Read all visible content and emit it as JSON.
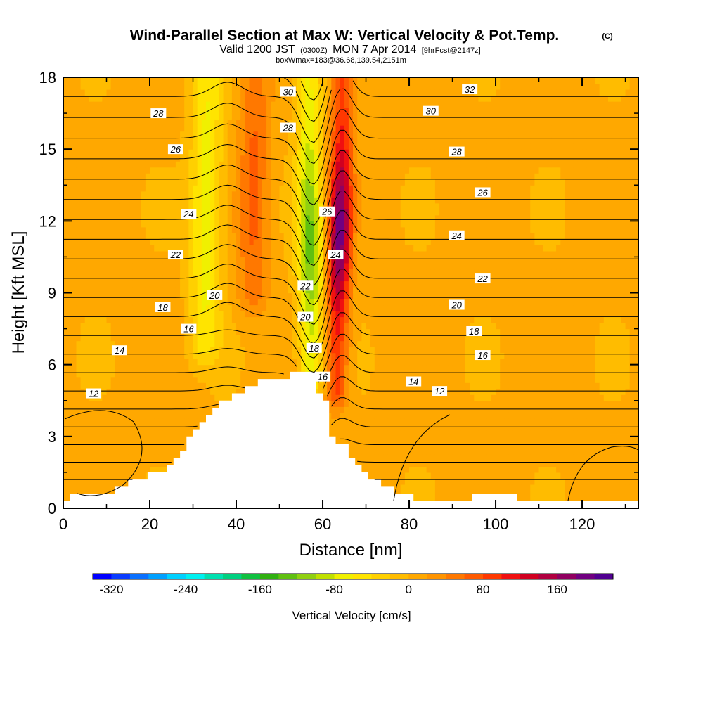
{
  "chart_data": {
    "type": "heatmap",
    "title": "Wind-Parallel Section at Max W: Vertical Velocity & Pot.Temp.",
    "title_mark": "(C)",
    "subtitle_parts": [
      "Valid 1200 JST",
      "(0300Z)",
      "MON 7 Apr 2014",
      "[9hrFcst@2147z]"
    ],
    "subtitle2": "boxWmax=183@36.68,139.54,2151m",
    "xlabel": "Distance [nm]",
    "ylabel": "Height [Kft MSL]",
    "xlim": [
      0,
      133
    ],
    "ylim": [
      0,
      18
    ],
    "x_ticks": [
      0,
      20,
      40,
      60,
      80,
      100,
      120
    ],
    "x_tick_labels": [
      "0",
      "20",
      "40",
      "60",
      "80",
      "100",
      "120"
    ],
    "y_ticks": [
      0,
      3,
      6,
      9,
      12,
      15,
      18
    ],
    "y_tick_labels": [
      "0",
      "3",
      "6",
      "9",
      "12",
      "15",
      "18"
    ],
    "colorbar": {
      "label": "Vertical Velocity [cm/s]",
      "min": -340,
      "max": 220,
      "step": 20,
      "tick_values": [
        -320,
        -240,
        -160,
        -80,
        0,
        80,
        160
      ],
      "tick_labels": [
        "-320",
        "-240",
        "-160",
        "-80",
        "0",
        "80",
        "160"
      ],
      "colors": [
        "#0000ff",
        "#0a3cff",
        "#0a70ff",
        "#00a0ff",
        "#00d0ff",
        "#00f0f0",
        "#00e0b0",
        "#00d080",
        "#10c040",
        "#30b010",
        "#60c010",
        "#90d010",
        "#c0e000",
        "#f0f000",
        "#ffe400",
        "#ffd000",
        "#ffbc00",
        "#ffa800",
        "#ff9400",
        "#ff7800",
        "#ff5a00",
        "#ff3800",
        "#f01010",
        "#d00020",
        "#b00040",
        "#900060",
        "#700080",
        "#500090"
      ]
    },
    "vertical_velocity_cm_s": {
      "description": "value grid x 0..132 nm step 4, z 0..18 kft step 1",
      "features": [
        {
          "name": "downdraft",
          "x_nm": 33,
          "z_kft": [
            7,
            18
          ],
          "min_value": -80
        },
        {
          "name": "updraft",
          "x_nm": 44,
          "z_kft": [
            9,
            18
          ],
          "max_value": 60
        },
        {
          "name": "downdraft",
          "x_nm": 57,
          "z_kft": [
            5.5,
            18
          ],
          "min_value": -130
        },
        {
          "name": "updraft",
          "x_nm": 64,
          "z_kft": [
            5,
            18
          ],
          "max_value": 183
        }
      ]
    },
    "terrain": {
      "x_nm": [
        0,
        3,
        10,
        13,
        16,
        22,
        25,
        28,
        32,
        35,
        39,
        42,
        45,
        48,
        51,
        55,
        57,
        58,
        59,
        61,
        62,
        65,
        68,
        71,
        74,
        79,
        82,
        90,
        100,
        110,
        120,
        133
      ],
      "height_kft": [
        0.3,
        0.6,
        0.6,
        0.9,
        1.2,
        1.5,
        1.8,
        2.6,
        3.7,
        4.2,
        4.7,
        5.0,
        5.2,
        5.4,
        5.5,
        5.7,
        5.7,
        5.6,
        5.0,
        4.3,
        3.0,
        2.7,
        1.8,
        1.3,
        1.0,
        0.6,
        0.3,
        0.3,
        0.6,
        0.3,
        0.3,
        0.3
      ]
    },
    "potential_temperature_contours": {
      "labels": [
        {
          "text": "12",
          "x_nm": 7,
          "z_kft": 4.8
        },
        {
          "text": "14",
          "x_nm": 13,
          "z_kft": 6.6
        },
        {
          "text": "16",
          "x_nm": 29,
          "z_kft": 7.5
        },
        {
          "text": "18",
          "x_nm": 23,
          "z_kft": 8.4
        },
        {
          "text": "20",
          "x_nm": 35,
          "z_kft": 8.9
        },
        {
          "text": "22",
          "x_nm": 26,
          "z_kft": 10.6
        },
        {
          "text": "24",
          "x_nm": 29,
          "z_kft": 12.3
        },
        {
          "text": "26",
          "x_nm": 26,
          "z_kft": 15.0
        },
        {
          "text": "28",
          "x_nm": 22,
          "z_kft": 16.5
        },
        {
          "text": "30",
          "x_nm": 52,
          "z_kft": 17.4
        },
        {
          "text": "28",
          "x_nm": 52,
          "z_kft": 15.9
        },
        {
          "text": "26",
          "x_nm": 61,
          "z_kft": 12.4
        },
        {
          "text": "24",
          "x_nm": 63,
          "z_kft": 10.6
        },
        {
          "text": "22",
          "x_nm": 56,
          "z_kft": 9.3
        },
        {
          "text": "20",
          "x_nm": 56,
          "z_kft": 8.0
        },
        {
          "text": "18",
          "x_nm": 58,
          "z_kft": 6.7
        },
        {
          "text": "16",
          "x_nm": 60,
          "z_kft": 5.5
        },
        {
          "text": "14",
          "x_nm": 81,
          "z_kft": 5.3
        },
        {
          "text": "12",
          "x_nm": 87,
          "z_kft": 4.9
        },
        {
          "text": "16",
          "x_nm": 97,
          "z_kft": 6.4
        },
        {
          "text": "18",
          "x_nm": 95,
          "z_kft": 7.4
        },
        {
          "text": "20",
          "x_nm": 91,
          "z_kft": 8.5
        },
        {
          "text": "22",
          "x_nm": 97,
          "z_kft": 9.6
        },
        {
          "text": "24",
          "x_nm": 91,
          "z_kft": 11.4
        },
        {
          "text": "26",
          "x_nm": 97,
          "z_kft": 13.2
        },
        {
          "text": "28",
          "x_nm": 91,
          "z_kft": 14.9
        },
        {
          "text": "30",
          "x_nm": 85,
          "z_kft": 16.6
        },
        {
          "text": "32",
          "x_nm": 94,
          "z_kft": 17.5
        }
      ]
    }
  }
}
